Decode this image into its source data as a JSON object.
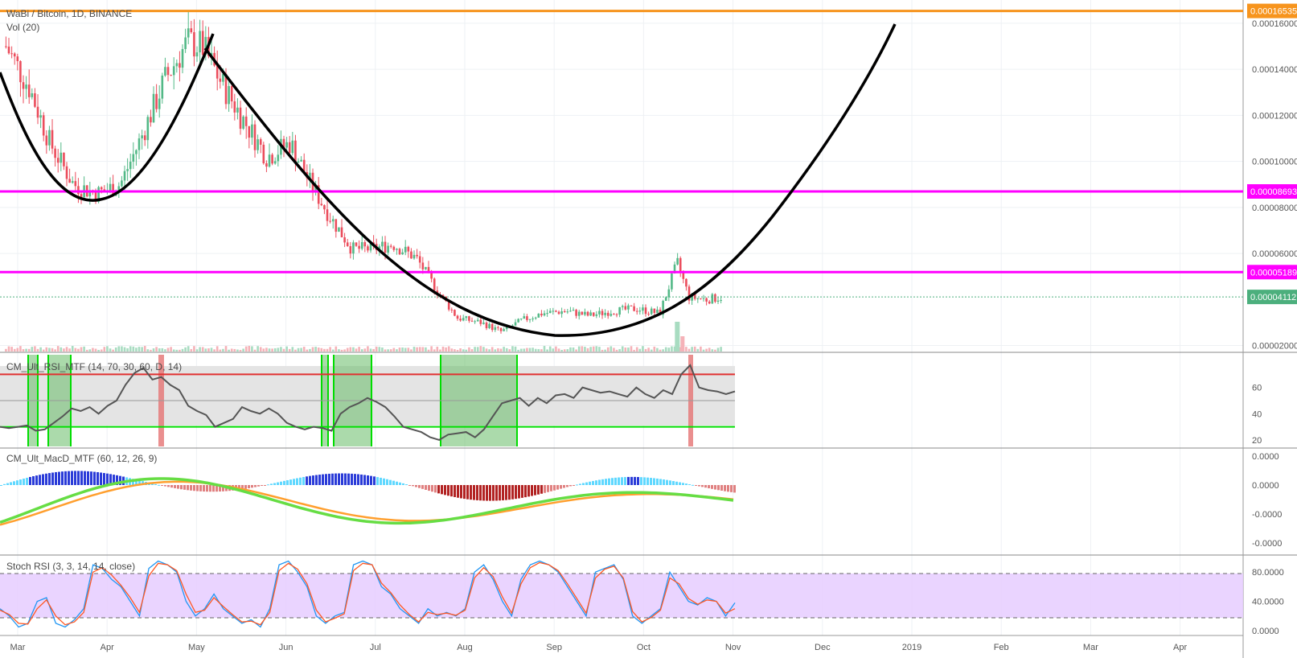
{
  "header": {
    "symbol": "WaBi / Bitcoin, 1D, BINANCE",
    "volume": "Vol (20)"
  },
  "panes": {
    "rsi": "CM_Ult_RSI_MTF (14, 70, 30, 60, D, 14)",
    "macd": "CM_Ult_MacD_MTF (60, 12, 26, 9)",
    "stoch": "Stoch RSI (3, 3, 14, 14, close)"
  },
  "chart_data": {
    "type": "line",
    "title": "WaBi / Bitcoin, 1D, BINANCE",
    "x_labels": [
      "Mar",
      "Apr",
      "May",
      "Jun",
      "Jul",
      "Aug",
      "Sep",
      "Oct",
      "Nov",
      "Dec",
      "2019",
      "Feb",
      "Mar",
      "Apr"
    ],
    "y_ticks": [
      "0.00016000",
      "0.00014000",
      "0.00012000",
      "0.00010000",
      "0.00008000",
      "0.00006000",
      "0.00002000"
    ],
    "y_range": [
      1.6e-05,
      0.000168
    ],
    "series": [
      {
        "dates": [
          "2018-02-25",
          "2018-03-05",
          "2018-03-12",
          "2018-03-20",
          "2018-03-28",
          "2018-04-05",
          "2018-04-12",
          "2018-04-20",
          "2018-04-28",
          "2018-05-03",
          "2018-05-10",
          "2018-05-17",
          "2018-05-25",
          "2018-06-02",
          "2018-06-09",
          "2018-06-16",
          "2018-06-23",
          "2018-06-30",
          "2018-07-07",
          "2018-07-15",
          "2018-07-22",
          "2018-07-29",
          "2018-08-06",
          "2018-08-13",
          "2018-08-20",
          "2018-08-27",
          "2018-09-04",
          "2018-09-12",
          "2018-09-20",
          "2018-09-28",
          "2018-10-06",
          "2018-10-12",
          "2018-10-16",
          "2018-10-22",
          "2018-10-27"
        ],
        "values": [
          0.00015,
          0.000132,
          0.000108,
          9e-05,
          8.6e-05,
          9e-05,
          0.00011,
          0.000135,
          0.000152,
          0.00015,
          0.000133,
          0.000118,
          0.000102,
          0.000108,
          9e-05,
          7.5e-05,
          6.2e-05,
          6.2e-05,
          6.4e-05,
          5.8e-05,
          4.4e-05,
          3.2e-05,
          3e-05,
          2.6e-05,
          3.1e-05,
          3.4e-05,
          3.5e-05,
          3.3e-05,
          3.5e-05,
          3.6e-05,
          3.4e-05,
          5.6e-05,
          4.1e-05,
          4e-05,
          4.1e-05
        ]
      }
    ],
    "levels": [
      {
        "label": "0.00016535",
        "value": 0.00016535,
        "color": "#f7941d"
      },
      {
        "label": "0.00008693",
        "value": 8.693e-05,
        "color": "#ff00ff"
      },
      {
        "label": "0.00005189",
        "value": 5.189e-05,
        "color": "#ff00ff"
      },
      {
        "label": "0.00004112",
        "value": 4.112e-05,
        "color": "#4caf7d"
      }
    ],
    "rsi": {
      "ticks": [
        "60",
        "40",
        "20"
      ],
      "range": [
        15,
        85
      ],
      "upper": 70,
      "lower": 30,
      "mid": 50,
      "values": [
        30,
        29,
        30,
        31,
        27,
        28,
        33,
        38,
        44,
        42,
        45,
        40,
        46,
        50,
        62,
        71,
        75,
        66,
        68,
        62,
        58,
        46,
        42,
        39,
        30,
        33,
        36,
        45,
        42,
        40,
        44,
        40,
        33,
        30,
        28,
        30,
        29,
        27,
        40,
        45,
        48,
        52,
        49,
        45,
        38,
        30,
        28,
        26,
        22,
        20,
        24,
        25,
        26,
        22,
        28,
        38,
        48,
        50,
        52,
        46,
        52,
        48,
        54,
        55,
        52,
        60,
        58,
        56,
        57,
        55,
        53,
        60,
        55,
        52,
        58,
        55,
        70,
        77,
        60,
        58,
        57,
        55,
        57
      ]
    },
    "macd": {
      "ticks": [
        "0.0000",
        "0.0000",
        "-0.0000",
        "-0.0000"
      ]
    },
    "stoch": {
      "ticks": [
        "80.0000",
        "40.0000",
        "0.0000"
      ],
      "range": [
        0,
        100
      ],
      "upper": 80,
      "lower": 20,
      "k": [
        30,
        20,
        5,
        10,
        40,
        45,
        10,
        5,
        15,
        30,
        90,
        85,
        70,
        60,
        40,
        20,
        85,
        95,
        90,
        80,
        40,
        20,
        30,
        50,
        30,
        20,
        10,
        15,
        5,
        30,
        90,
        95,
        80,
        60,
        20,
        10,
        20,
        25,
        90,
        95,
        90,
        60,
        50,
        30,
        20,
        10,
        30,
        20,
        25,
        20,
        30,
        80,
        90,
        70,
        40,
        20,
        70,
        90,
        95,
        90,
        80,
        60,
        40,
        20,
        80,
        85,
        90,
        70,
        20,
        10,
        20,
        30,
        80,
        60,
        40,
        35,
        45,
        40,
        20,
        38
      ],
      "d": [
        28,
        22,
        10,
        9,
        30,
        42,
        20,
        8,
        12,
        25,
        80,
        86,
        76,
        62,
        45,
        25,
        75,
        92,
        90,
        82,
        50,
        25,
        28,
        45,
        33,
        22,
        12,
        13,
        8,
        25,
        82,
        92,
        84,
        64,
        28,
        12,
        17,
        23,
        82,
        92,
        90,
        65,
        52,
        35,
        22,
        12,
        25,
        22,
        24,
        21,
        28,
        72,
        86,
        74,
        46,
        24,
        64,
        86,
        93,
        90,
        82,
        64,
        44,
        24,
        72,
        84,
        88,
        72,
        26,
        12,
        18,
        28,
        72,
        64,
        44,
        36,
        42,
        40,
        24,
        30
      ]
    }
  },
  "colors": {
    "up": "#53b987",
    "down": "#eb4d5c",
    "arc": "#000000",
    "rsi_line": "#555555",
    "rsi_over": "#e03030",
    "rsi_under": "#00dd00",
    "macd_fast": "#ff9f2e",
    "stoch_k": "#2196f3",
    "stoch_d": "#ff5722",
    "stoch_band": "#e6ccff"
  }
}
